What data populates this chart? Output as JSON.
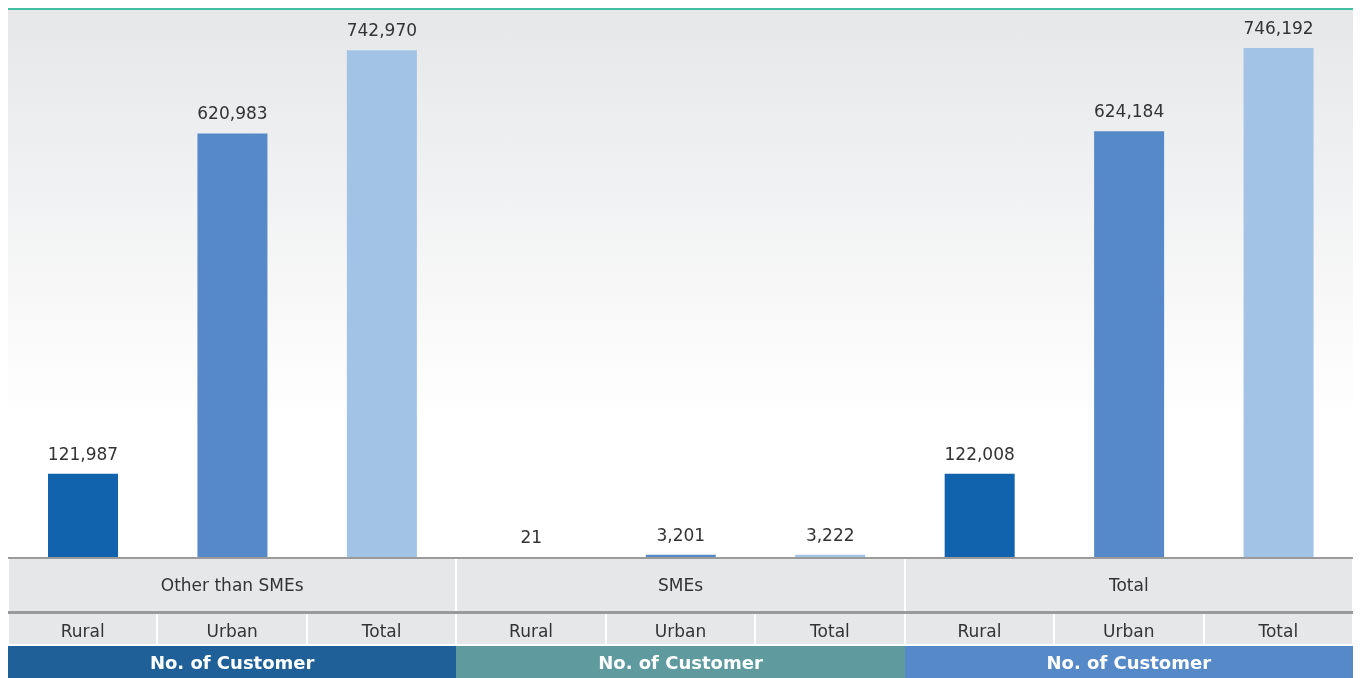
{
  "chart_data": {
    "type": "bar",
    "categories": [
      "Rural",
      "Urban",
      "Total",
      "Rural",
      "Urban",
      "Total",
      "Rural",
      "Urban",
      "Total"
    ],
    "values": [
      121987,
      620983,
      742970,
      21,
      3201,
      3222,
      122008,
      624184,
      746192
    ],
    "colors": [
      "#1163ae",
      "#5589c8",
      "#a3c3e6",
      "#1163ae",
      "#5589c8",
      "#a3c3e6",
      "#1163ae",
      "#5589c8",
      "#a3c3e6"
    ],
    "value_labels": [
      "121,987",
      "620,983",
      "742,970",
      "21",
      "3,201",
      "3,222",
      "122,008",
      "624,184",
      "746,192"
    ],
    "annotations": [
      "Other than SMEs",
      "SMEs",
      "Total",
      "No. of Customer",
      "No. of Customer",
      "No. of Customer"
    ]
  }
}
